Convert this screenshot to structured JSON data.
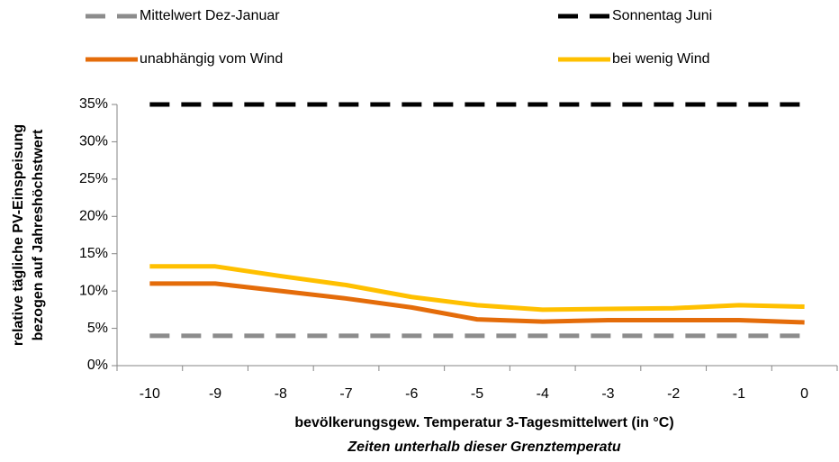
{
  "chart_data": {
    "type": "line",
    "categories": [
      "-10",
      "-9",
      "-8",
      "-7",
      "-6",
      "-5",
      "-4",
      "-3",
      "-2",
      "-1",
      "0"
    ],
    "series": [
      {
        "name": "Mittelwert Dez-Januar",
        "color": "#8c8c8c",
        "dashed": true,
        "values": [
          4,
          4,
          4,
          4,
          4,
          4,
          4,
          4,
          4,
          4,
          4
        ]
      },
      {
        "name": "Sonnentag Juni",
        "color": "#000000",
        "dashed": true,
        "values": [
          35,
          35,
          35,
          35,
          35,
          35,
          35,
          35,
          35,
          35,
          35
        ]
      },
      {
        "name": "unabhängig vom Wind",
        "color": "#e46c0a",
        "dashed": false,
        "values": [
          11,
          11,
          10,
          9,
          7.8,
          6.2,
          5.9,
          6.1,
          6.1,
          6.1,
          5.8
        ]
      },
      {
        "name": "bei wenig Wind",
        "color": "#ffc000",
        "dashed": false,
        "values": [
          13.3,
          13.3,
          12,
          10.8,
          9.2,
          8.1,
          7.5,
          7.6,
          7.7,
          8.1,
          7.9
        ]
      }
    ],
    "ylim": [
      0,
      35
    ],
    "yticks": [
      {
        "value": 0,
        "label": "0%"
      },
      {
        "value": 5,
        "label": "5%"
      },
      {
        "value": 10,
        "label": "10%"
      },
      {
        "value": 15,
        "label": "15%"
      },
      {
        "value": 20,
        "label": "20%"
      },
      {
        "value": 25,
        "label": "25%"
      },
      {
        "value": 30,
        "label": "30%"
      },
      {
        "value": 35,
        "label": "35%"
      }
    ],
    "y_label": [
      "relative tägliche PV-Einspeisung",
      "bezogen auf Jahreshöchstwert"
    ],
    "x_label": "bevölkerungsgew. Temperatur 3-Tagesmittelwert (in °C)",
    "x_label_note": "Zeiten unterhalb dieser Grenztemperatu",
    "legend": "top"
  }
}
